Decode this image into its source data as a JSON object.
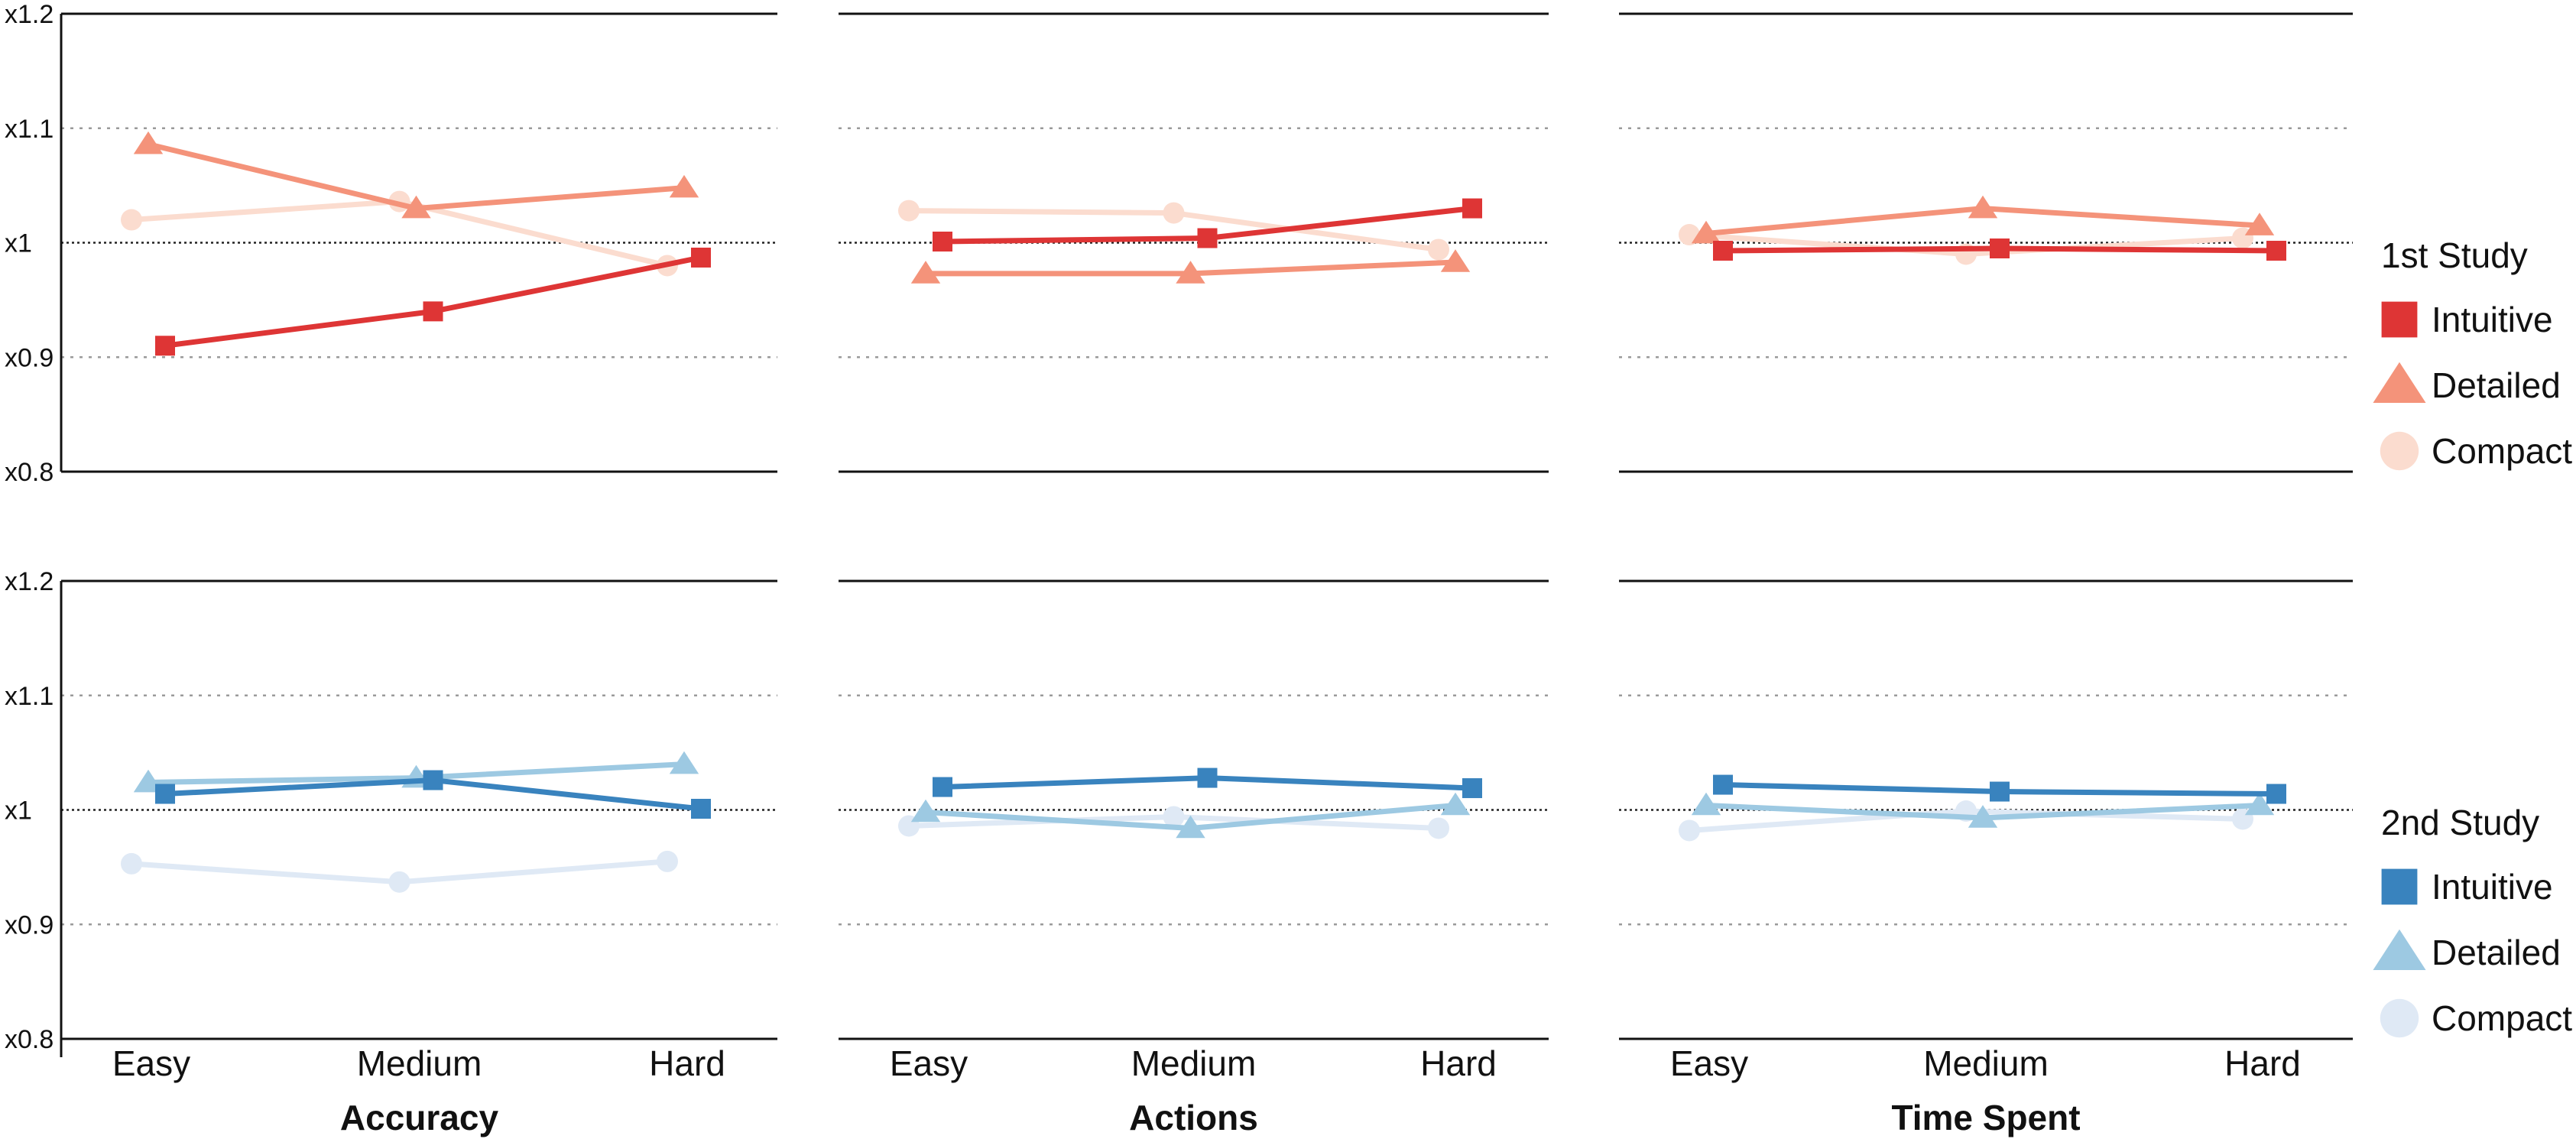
{
  "chart_data": {
    "type": "line",
    "categories": [
      "Easy",
      "Medium",
      "Hard"
    ],
    "y_ticks": [
      "x1.2",
      "x1.1",
      "x1",
      "x0.9",
      "x0.8"
    ],
    "y_tick_values": [
      1.2,
      1.1,
      1.0,
      0.9,
      0.8
    ],
    "ylim": [
      0.8,
      1.2
    ],
    "metrics": [
      "Accuracy",
      "Actions",
      "Time Spent"
    ],
    "grid": "dotted at x1.1 and x0.9, dotted dark at x1, solid at x1.2 and x0.8",
    "legend_placement": "right",
    "studies": [
      {
        "title": "1st Study",
        "series": [
          {
            "name": "Intuitive",
            "marker": "square",
            "color": "#de3535",
            "values": [
              [
                0.91,
                0.94,
                0.987
              ],
              [
                1.001,
                1.004,
                1.03
              ],
              [
                0.993,
                0.995,
                0.993
              ]
            ]
          },
          {
            "name": "Detailed",
            "marker": "triangle",
            "color": "#f4937a",
            "values": [
              [
                1.086,
                1.03,
                1.048
              ],
              [
                0.973,
                0.973,
                0.983
              ],
              [
                1.008,
                1.03,
                1.015
              ]
            ]
          },
          {
            "name": "Compact",
            "marker": "circle",
            "color": "#fbdccf",
            "values": [
              [
                1.02,
                1.036,
                0.98
              ],
              [
                1.028,
                1.026,
                0.994
              ],
              [
                1.007,
                0.99,
                1.004
              ]
            ]
          }
        ]
      },
      {
        "title": "2nd Study",
        "series": [
          {
            "name": "Intuitive",
            "marker": "square",
            "color": "#3983be",
            "values": [
              [
                1.014,
                1.026,
                1.001
              ],
              [
                1.02,
                1.028,
                1.019
              ],
              [
                1.022,
                1.016,
                1.014
              ]
            ]
          },
          {
            "name": "Detailed",
            "marker": "triangle",
            "color": "#9dc9e2",
            "values": [
              [
                1.024,
                1.028,
                1.04
              ],
              [
                0.998,
                0.984,
                1.004
              ],
              [
                1.004,
                0.993,
                1.004
              ]
            ]
          },
          {
            "name": "Compact",
            "marker": "circle",
            "color": "#dfe9f5",
            "values": [
              [
                0.953,
                0.937,
                0.955
              ],
              [
                0.986,
                0.994,
                0.984
              ],
              [
                0.982,
                0.999,
                0.992
              ]
            ]
          }
        ]
      }
    ]
  }
}
